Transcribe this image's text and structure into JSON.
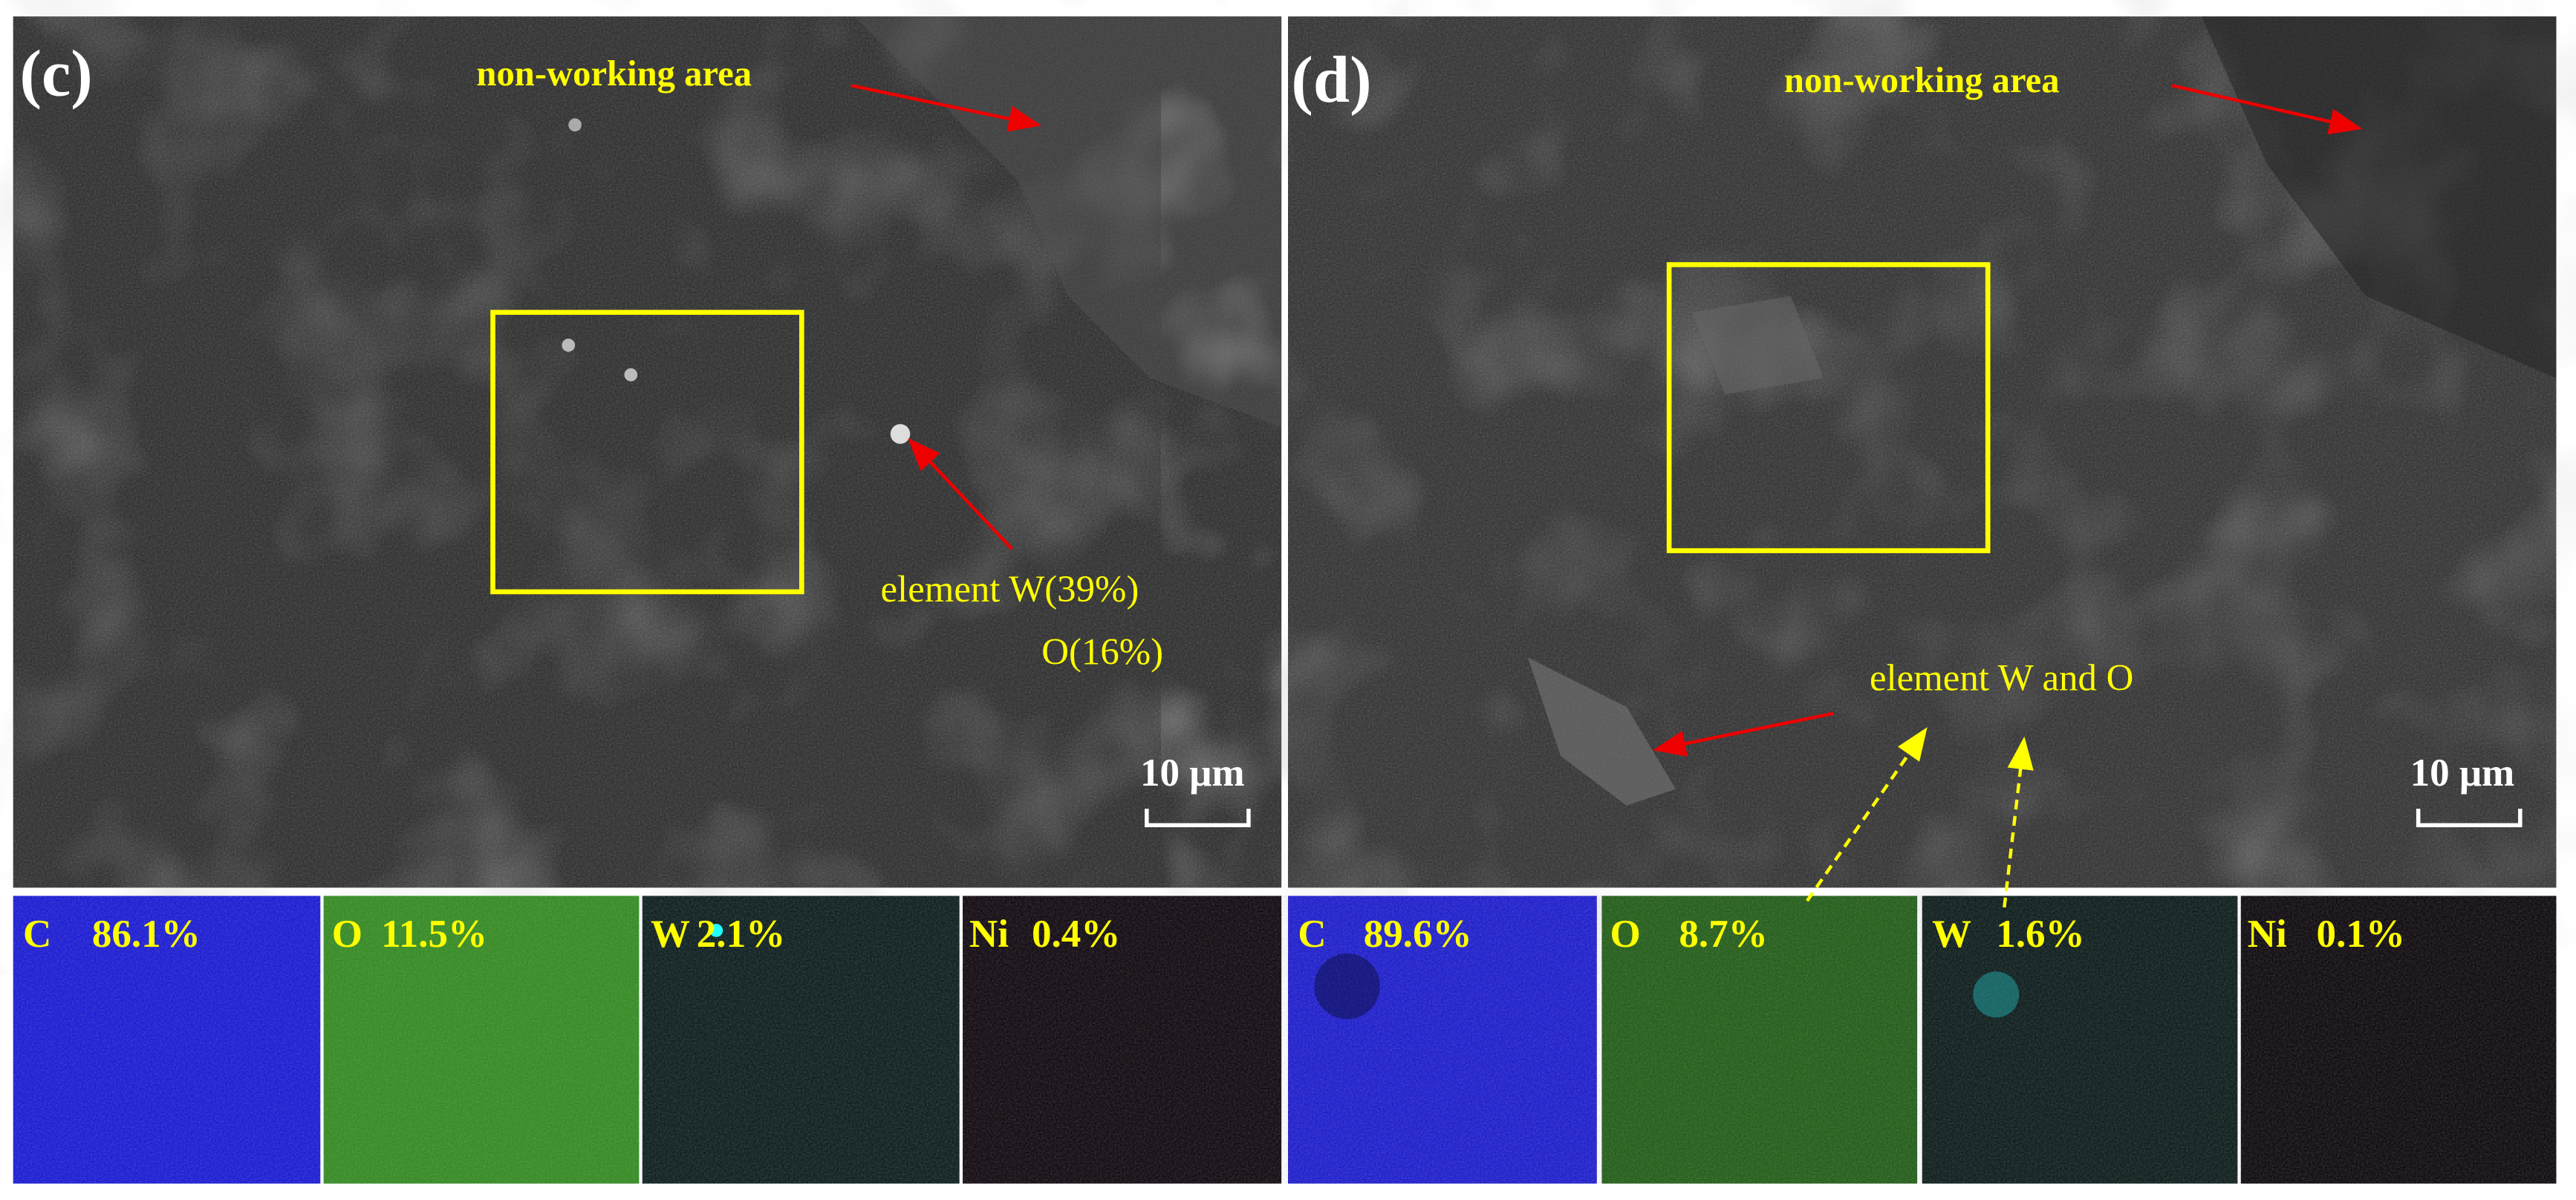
{
  "panels": [
    {
      "label": "(c)",
      "annotations": [
        "non-working area",
        "element W(39%)",
        "O(16%)"
      ],
      "scale_bar": "10 μm",
      "maps": [
        {
          "element": "C",
          "percent": "86.1%"
        },
        {
          "element": "O",
          "percent": "11.5%"
        },
        {
          "element": "W",
          "percent": "2.1%"
        },
        {
          "element": "Ni",
          "percent": "0.4%"
        }
      ]
    },
    {
      "label": "(d)",
      "annotations": [
        "non-working area",
        "element W and O"
      ],
      "scale_bar": "10 μm",
      "maps": [
        {
          "element": "C",
          "percent": "89.6%"
        },
        {
          "element": "O",
          "percent": "8.7%"
        },
        {
          "element": "W",
          "percent": "1.6%"
        },
        {
          "element": "Ni",
          "percent": "0.1%"
        }
      ]
    }
  ]
}
